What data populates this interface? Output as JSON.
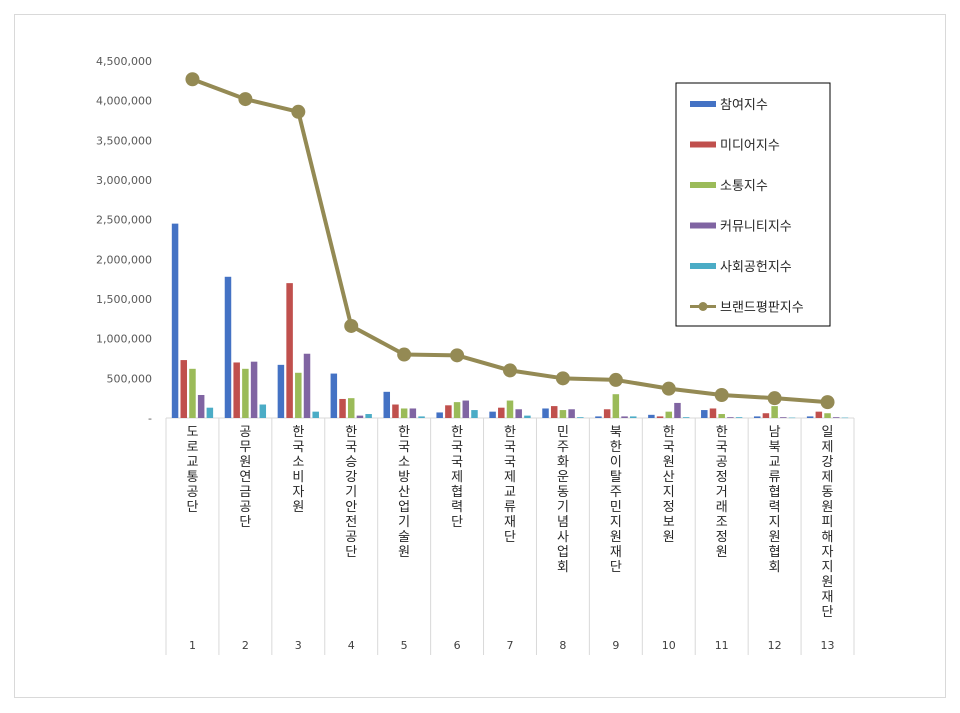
{
  "chart_data": {
    "type": "bar",
    "title": "",
    "xlabel": "",
    "ylabel": "",
    "ylim": [
      0,
      4500000
    ],
    "yticks": [
      "-",
      "500,000",
      "1,000,000",
      "1,500,000",
      "2,000,000",
      "2,500,000",
      "3,000,000",
      "3,500,000",
      "4,000,000",
      "4,500,000"
    ],
    "grid": false,
    "legend_position": "top-right",
    "categories": [
      "도로교통공단",
      "공무원연금공단",
      "한국소비자원",
      "한국승강기안전공단",
      "한국소방산업기술원",
      "한국국제협력단",
      "한국국제교류재단",
      "민주화운동기념사업회",
      "북한이탈주민지원재단",
      "한국원산지정보원",
      "한국공정거래조정원",
      "남북교류협력지원협회",
      "일제강제동원피해자지원재단"
    ],
    "category_numbers": [
      "1",
      "2",
      "3",
      "4",
      "5",
      "6",
      "7",
      "8",
      "9",
      "10",
      "11",
      "12",
      "13"
    ],
    "series": [
      {
        "name": "참여지수",
        "kind": "bar",
        "color": "#4472c4",
        "values": [
          2450000,
          1780000,
          670000,
          560000,
          330000,
          70000,
          80000,
          120000,
          20000,
          40000,
          100000,
          20000,
          20000
        ]
      },
      {
        "name": "미디어지수",
        "kind": "bar",
        "color": "#c0504d",
        "values": [
          730000,
          700000,
          1700000,
          240000,
          170000,
          160000,
          130000,
          150000,
          110000,
          20000,
          120000,
          60000,
          80000
        ]
      },
      {
        "name": "소통지수",
        "kind": "bar",
        "color": "#9bbb59",
        "values": [
          620000,
          620000,
          570000,
          250000,
          120000,
          200000,
          220000,
          100000,
          300000,
          80000,
          50000,
          150000,
          60000
        ]
      },
      {
        "name": "커뮤니티지수",
        "kind": "bar",
        "color": "#8064a2",
        "values": [
          290000,
          710000,
          810000,
          30000,
          120000,
          220000,
          110000,
          110000,
          20000,
          190000,
          10000,
          10000,
          10000
        ]
      },
      {
        "name": "사회공헌지수",
        "kind": "bar",
        "color": "#4bacc6",
        "values": [
          130000,
          170000,
          80000,
          50000,
          20000,
          100000,
          30000,
          10000,
          20000,
          10000,
          10000,
          5000,
          5000
        ]
      },
      {
        "name": "브랜드평판지수",
        "kind": "line",
        "color": "#948a54",
        "values": [
          4270000,
          4020000,
          3860000,
          1160000,
          800000,
          790000,
          600000,
          500000,
          480000,
          370000,
          290000,
          250000,
          200000
        ]
      }
    ]
  }
}
